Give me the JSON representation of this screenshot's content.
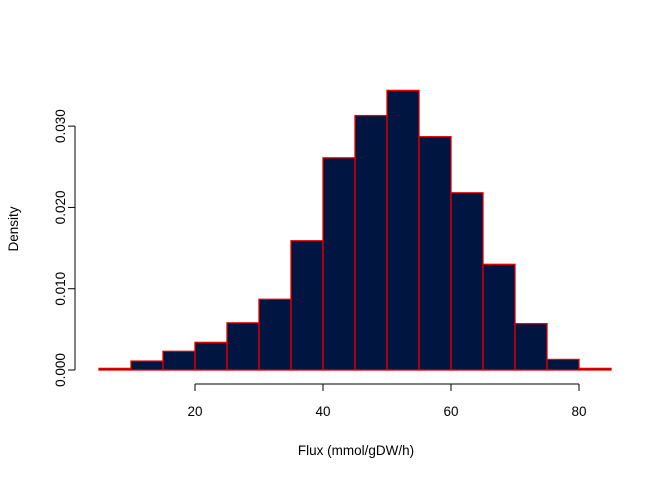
{
  "chart_data": {
    "type": "bar",
    "title": "",
    "xlabel": "Flux (mmol/gDW/h)",
    "ylabel": "Density",
    "xlim": [
      5,
      85
    ],
    "ylim": [
      0,
      0.035
    ],
    "x_ticks": [
      20,
      40,
      60,
      80
    ],
    "x_tick_labels": [
      "20",
      "40",
      "60",
      "80"
    ],
    "y_ticks": [
      0,
      0.01,
      0.02,
      0.03
    ],
    "y_tick_labels": [
      "0.000",
      "0.010",
      "0.020",
      "0.030"
    ],
    "bin_width": 5,
    "bins": [
      {
        "start": 5,
        "end": 10,
        "density": 0.0002
      },
      {
        "start": 10,
        "end": 15,
        "density": 0.0011
      },
      {
        "start": 15,
        "end": 20,
        "density": 0.0023
      },
      {
        "start": 20,
        "end": 25,
        "density": 0.0034
      },
      {
        "start": 25,
        "end": 30,
        "density": 0.0058
      },
      {
        "start": 30,
        "end": 35,
        "density": 0.0087
      },
      {
        "start": 35,
        "end": 40,
        "density": 0.0159
      },
      {
        "start": 40,
        "end": 45,
        "density": 0.0261
      },
      {
        "start": 45,
        "end": 50,
        "density": 0.0313
      },
      {
        "start": 50,
        "end": 55,
        "density": 0.0344
      },
      {
        "start": 55,
        "end": 60,
        "density": 0.0287
      },
      {
        "start": 60,
        "end": 65,
        "density": 0.0218
      },
      {
        "start": 65,
        "end": 70,
        "density": 0.013
      },
      {
        "start": 70,
        "end": 75,
        "density": 0.0057
      },
      {
        "start": 75,
        "end": 80,
        "density": 0.0013
      },
      {
        "start": 80,
        "end": 85,
        "density": 0.0002
      }
    ],
    "bar_fill": "#001540",
    "bar_border": "#e00000",
    "grid": false,
    "legend": "none"
  }
}
